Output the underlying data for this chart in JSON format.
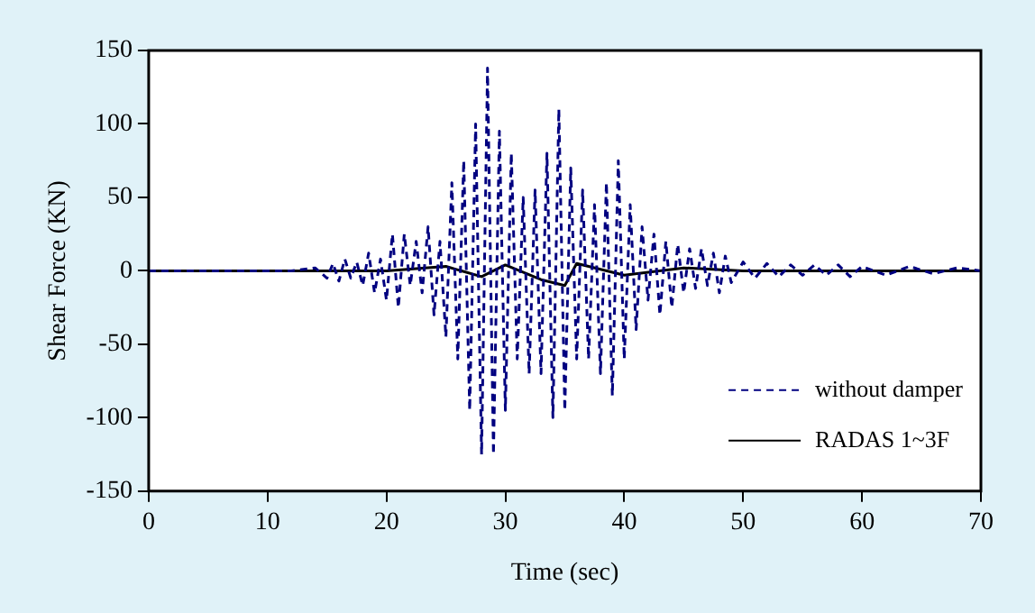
{
  "chart_data": {
    "type": "line",
    "xlabel": "Time (sec)",
    "ylabel": "Shear Force (KN)",
    "xlim": [
      0,
      70
    ],
    "xticks": [
      0,
      10,
      20,
      30,
      40,
      50,
      60,
      70
    ],
    "ylim": [
      -150,
      150
    ],
    "yticks": [
      -150,
      -100,
      -50,
      0,
      50,
      100,
      150
    ],
    "grid": false,
    "legend": "bottom right",
    "marker": "none",
    "series": [
      {
        "name": "without damper",
        "color": "#000080",
        "line_style": "dashed",
        "x": [
          0,
          12,
          14,
          15,
          15.5,
          16,
          16.5,
          17,
          17.5,
          18,
          18.5,
          19,
          19.5,
          20,
          20.5,
          21,
          21.5,
          22,
          22.5,
          23,
          23.5,
          24,
          24.5,
          25,
          25.5,
          26,
          26.5,
          27,
          27.5,
          28,
          28.5,
          29,
          29.5,
          30,
          30.5,
          31,
          31.5,
          32,
          32.5,
          33,
          33.5,
          34,
          34.5,
          35,
          35.5,
          36,
          36.5,
          37,
          37.5,
          38,
          38.5,
          39,
          39.5,
          40,
          40.5,
          41,
          41.5,
          42,
          42.5,
          43,
          43.5,
          44,
          44.5,
          45,
          45.5,
          46,
          46.5,
          47,
          47.5,
          48,
          48.5,
          49,
          50,
          51,
          52,
          53,
          54,
          55,
          56,
          57,
          58,
          59,
          60,
          62,
          64,
          66,
          68,
          70
        ],
        "values": [
          0,
          0,
          2,
          -5,
          5,
          -7,
          8,
          -5,
          6,
          -10,
          12,
          -15,
          8,
          -20,
          25,
          -25,
          25,
          -10,
          20,
          -15,
          30,
          -30,
          20,
          -45,
          60,
          -60,
          75,
          -95,
          100,
          -125,
          138,
          -125,
          95,
          -95,
          80,
          -60,
          50,
          -70,
          55,
          -70,
          80,
          -100,
          110,
          -95,
          70,
          -60,
          55,
          -60,
          45,
          -70,
          60,
          -85,
          75,
          -60,
          45,
          -40,
          30,
          -20,
          25,
          -30,
          20,
          -25,
          18,
          -15,
          15,
          -12,
          15,
          -10,
          12,
          -15,
          10,
          -8,
          6,
          -5,
          5,
          -4,
          4,
          -3,
          4,
          -3,
          4,
          -4,
          3,
          -3,
          3,
          -2,
          2,
          0
        ]
      },
      {
        "name": "RADAS 1~3F",
        "color": "#000000",
        "line_style": "solid",
        "x": [
          0,
          20,
          25,
          28,
          30,
          33,
          35,
          36,
          40,
          45,
          50,
          70
        ],
        "values": [
          0,
          0,
          3,
          -4,
          4,
          -6,
          -10,
          5,
          -3,
          2,
          0,
          0
        ]
      }
    ]
  }
}
